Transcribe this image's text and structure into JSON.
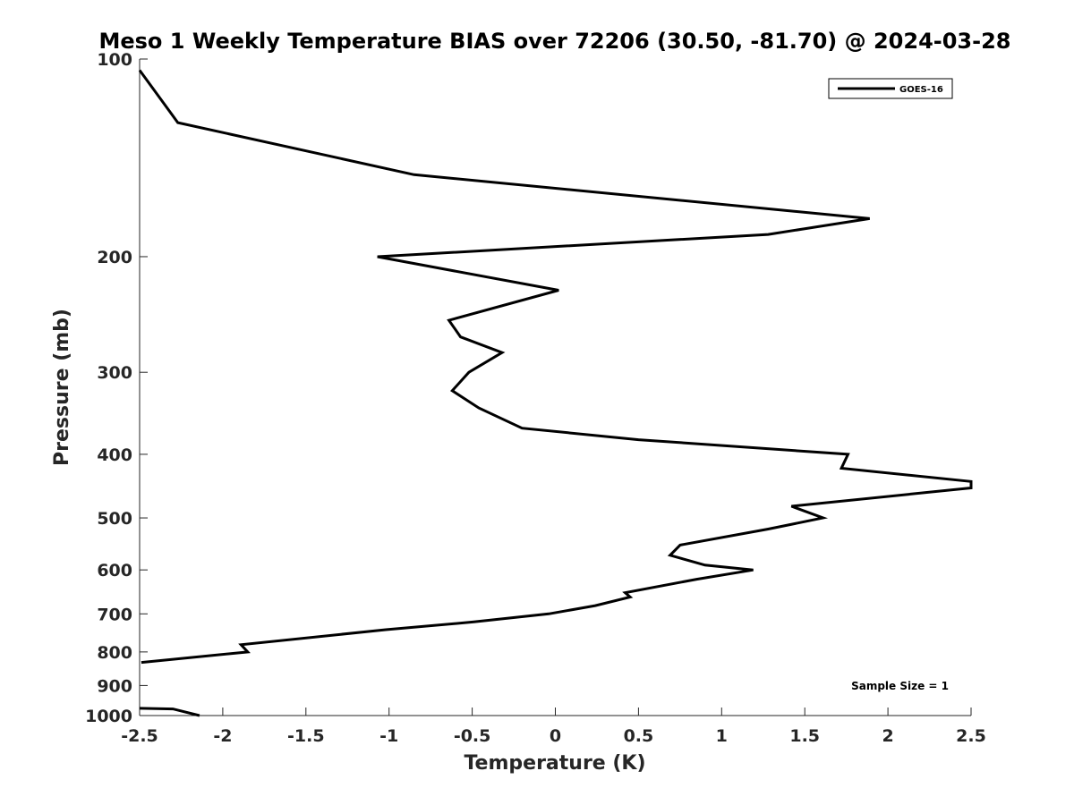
{
  "chart_data": {
    "type": "line",
    "title": "Meso 1 Weekly Temperature BIAS over 72206 (30.50, -81.70) @ 2024-03-28",
    "xlabel": "Temperature (K)",
    "ylabel": "Pressure (mb)",
    "xlim": [
      -2.5,
      2.5
    ],
    "ylim": [
      100,
      1000
    ],
    "y_scale": "log",
    "y_reversed": true,
    "x_ticks": [
      -2.5,
      -2,
      -1.5,
      -1,
      -0.5,
      0,
      0.5,
      1,
      1.5,
      2,
      2.5
    ],
    "x_tick_labels": [
      "-2.5",
      "-2",
      "-1.5",
      "-1",
      "-0.5",
      "0",
      "0.5",
      "1",
      "1.5",
      "2",
      "2.5"
    ],
    "y_ticks": [
      100,
      200,
      300,
      400,
      500,
      600,
      700,
      800,
      900,
      1000
    ],
    "y_tick_labels": [
      "100",
      "200",
      "300",
      "400",
      "500",
      "600",
      "700",
      "800",
      "900",
      "1000"
    ],
    "grid": false,
    "legend_position": "top-right",
    "annotation": "Sample Size = 1",
    "series": [
      {
        "name": "GOES-16",
        "color": "#000000",
        "segments": [
          [
            {
              "x": -2.5,
              "y": 104
            },
            {
              "x": -2.27,
              "y": 125
            },
            {
              "x": -0.85,
              "y": 150
            },
            {
              "x": 1.89,
              "y": 175
            },
            {
              "x": 1.28,
              "y": 185
            },
            {
              "x": -1.07,
              "y": 200
            },
            {
              "x": 0.02,
              "y": 225
            },
            {
              "x": -0.64,
              "y": 250
            },
            {
              "x": -0.57,
              "y": 265
            },
            {
              "x": -0.32,
              "y": 280
            },
            {
              "x": -0.52,
              "y": 300
            },
            {
              "x": -0.62,
              "y": 320
            },
            {
              "x": -0.46,
              "y": 340
            },
            {
              "x": -0.2,
              "y": 365
            },
            {
              "x": 0.5,
              "y": 380
            },
            {
              "x": 1.76,
              "y": 400
            },
            {
              "x": 1.72,
              "y": 420
            },
            {
              "x": 2.5,
              "y": 440
            },
            {
              "x": 2.5,
              "y": 450
            },
            {
              "x": 1.42,
              "y": 480
            },
            {
              "x": 1.61,
              "y": 500
            },
            {
              "x": 1.28,
              "y": 520
            },
            {
              "x": 0.75,
              "y": 550
            },
            {
              "x": 0.69,
              "y": 570
            },
            {
              "x": 0.9,
              "y": 590
            },
            {
              "x": 1.19,
              "y": 600
            },
            {
              "x": 0.85,
              "y": 620
            },
            {
              "x": 0.42,
              "y": 650
            },
            {
              "x": 0.45,
              "y": 660
            },
            {
              "x": 0.24,
              "y": 680
            },
            {
              "x": -0.04,
              "y": 700
            },
            {
              "x": -0.49,
              "y": 720
            },
            {
              "x": -1.02,
              "y": 740
            },
            {
              "x": -1.89,
              "y": 780
            },
            {
              "x": -1.85,
              "y": 800
            },
            {
              "x": -2.49,
              "y": 830
            }
          ],
          [
            {
              "x": -2.5,
              "y": 975
            },
            {
              "x": -2.3,
              "y": 977
            },
            {
              "x": -2.14,
              "y": 1000
            }
          ]
        ]
      }
    ]
  }
}
